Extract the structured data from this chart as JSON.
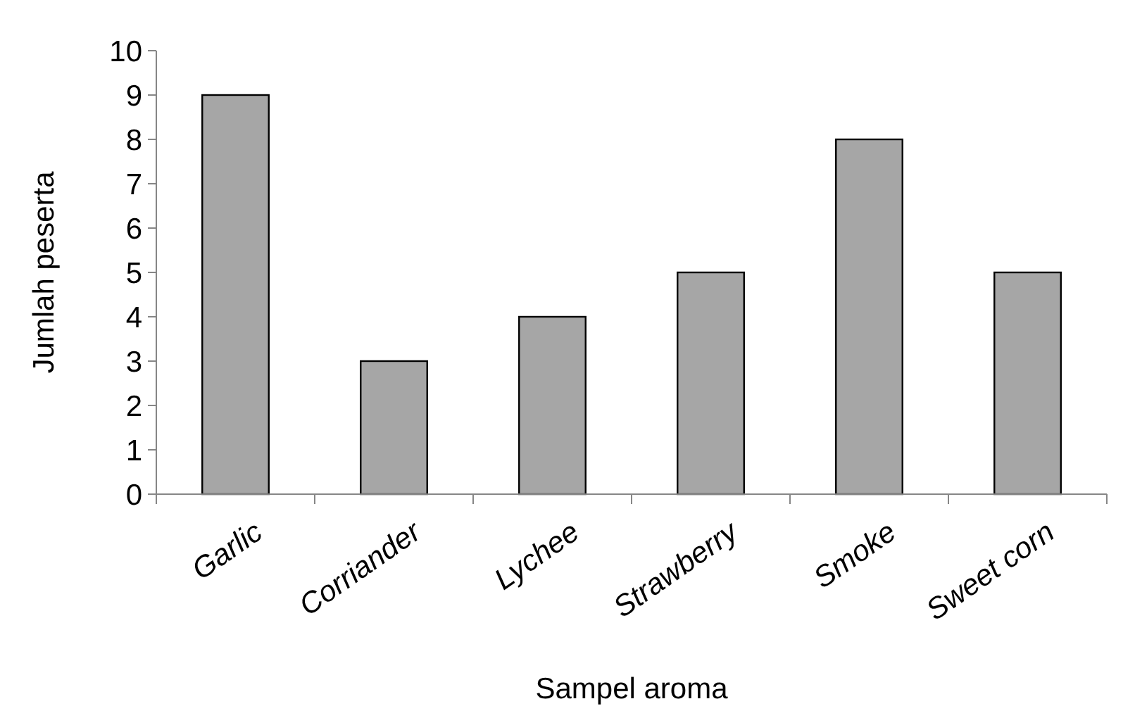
{
  "chart_data": {
    "type": "bar",
    "xlabel": "Sampel aroma",
    "ylabel": "Jumlah peserta",
    "categories": [
      "Garlic",
      "Corriander",
      "Lychee",
      "Strawberry",
      "Smoke",
      "Sweet corn"
    ],
    "values": [
      9,
      3,
      4,
      5,
      8,
      5
    ],
    "color": "#a6a6a6",
    "ylim": [
      0,
      10
    ],
    "yticks": [
      0,
      1,
      2,
      3,
      4,
      5,
      6,
      7,
      8,
      9,
      10
    ]
  }
}
